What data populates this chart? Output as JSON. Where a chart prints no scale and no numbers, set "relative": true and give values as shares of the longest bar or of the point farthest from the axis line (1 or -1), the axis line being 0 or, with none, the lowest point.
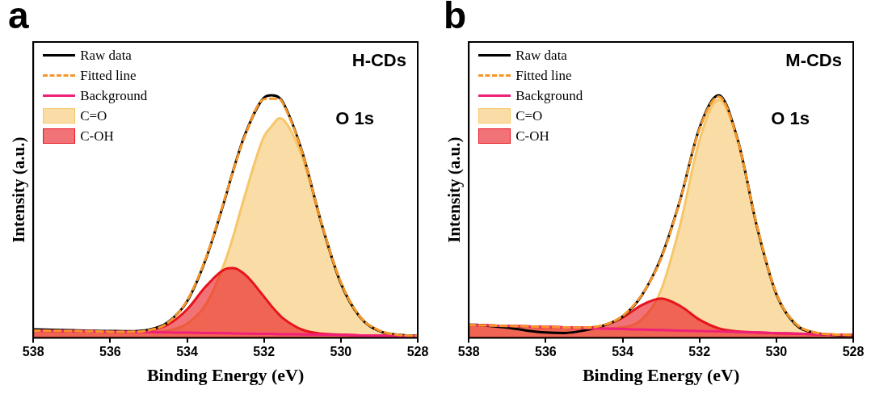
{
  "chart_data": [
    {
      "type": "line",
      "title": "a",
      "xlabel": "Binding Energy (eV)",
      "ylabel": "Intensity (a.u.)",
      "relative": true,
      "legend": "top left",
      "annotations": [
        "H-CDs",
        "O 1s"
      ],
      "xlim": [
        538,
        528
      ],
      "xticks": [
        538,
        536,
        534,
        532,
        530,
        528
      ],
      "x": [
        538,
        537.5,
        537,
        536.5,
        536,
        535.5,
        535,
        534.5,
        534,
        533.5,
        533,
        532.8,
        532.5,
        532,
        531.8,
        531.6,
        531.5,
        531,
        530.5,
        530,
        529.5,
        529,
        528.5,
        528
      ],
      "series": [
        {
          "name": "Raw data",
          "type": "line",
          "color": "#000000",
          "values": [
            0.035,
            0.033,
            0.031,
            0.029,
            0.028,
            0.027,
            0.033,
            0.064,
            0.15,
            0.33,
            0.58,
            0.69,
            0.835,
            0.99,
            1.0,
            0.99,
            0.97,
            0.765,
            0.47,
            0.225,
            0.085,
            0.028,
            0.012,
            0.008
          ]
        },
        {
          "name": "Fitted line",
          "type": "line",
          "line_style": "dashed",
          "color": "#f5962a",
          "values": [
            0.03,
            0.029,
            0.028,
            0.027,
            0.025,
            0.025,
            0.031,
            0.062,
            0.154,
            0.334,
            0.584,
            0.688,
            0.83,
            0.984,
            0.986,
            0.985,
            0.965,
            0.762,
            0.472,
            0.229,
            0.087,
            0.03,
            0.012,
            0.008
          ]
        },
        {
          "name": "Background",
          "type": "line",
          "color": "#f0207a",
          "values": [
            0.03,
            0.029,
            0.028,
            0.027,
            0.025,
            0.024,
            0.023,
            0.022,
            0.021,
            0.02,
            0.019,
            0.018,
            0.017,
            0.016,
            0.016,
            0.015,
            0.015,
            0.014,
            0.013,
            0.012,
            0.01,
            0.009,
            0.008,
            0.007
          ]
        },
        {
          "name": "C=O",
          "type": "area",
          "color": "#f6c66a",
          "values": [
            0.03,
            0.029,
            0.028,
            0.027,
            0.025,
            0.024,
            0.024,
            0.03,
            0.058,
            0.14,
            0.319,
            0.418,
            0.585,
            0.83,
            0.872,
            0.905,
            0.9,
            0.743,
            0.468,
            0.228,
            0.087,
            0.03,
            0.012,
            0.008
          ]
        },
        {
          "name": "C-OH",
          "type": "area",
          "color": "#e8141c",
          "values": [
            0.03,
            0.029,
            0.028,
            0.027,
            0.025,
            0.025,
            0.03,
            0.054,
            0.117,
            0.214,
            0.284,
            0.288,
            0.262,
            0.17,
            0.13,
            0.095,
            0.08,
            0.033,
            0.017,
            0.013,
            0.01,
            0.009,
            0.008,
            0.007
          ]
        }
      ]
    },
    {
      "type": "line",
      "title": "b",
      "xlabel": "Binding Energy (eV)",
      "ylabel": "Intensity (a.u.)",
      "relative": true,
      "legend": "top left",
      "annotations": [
        "M-CDs",
        "O 1s"
      ],
      "xlim": [
        538,
        528
      ],
      "xticks": [
        538,
        536,
        534,
        532,
        530,
        528
      ],
      "x": [
        538,
        537.5,
        537,
        536.5,
        536,
        535.5,
        535,
        534.5,
        534,
        533.5,
        533,
        532.5,
        532,
        531.5,
        531,
        530.5,
        530,
        529.5,
        529,
        528.5,
        528
      ],
      "series": [
        {
          "name": "Raw data",
          "type": "line",
          "color": "#000000",
          "values": [
            0.055,
            0.05,
            0.042,
            0.03,
            0.022,
            0.02,
            0.03,
            0.05,
            0.088,
            0.175,
            0.33,
            0.57,
            0.865,
            1.0,
            0.815,
            0.455,
            0.18,
            0.055,
            0.02,
            0.012,
            0.01
          ]
        },
        {
          "name": "Fitted line",
          "type": "line",
          "line_style": "dashed",
          "color": "#f5962a",
          "values": [
            0.053,
            0.051,
            0.049,
            0.047,
            0.045,
            0.043,
            0.042,
            0.052,
            0.09,
            0.177,
            0.326,
            0.568,
            0.861,
            0.994,
            0.812,
            0.459,
            0.183,
            0.059,
            0.022,
            0.014,
            0.011
          ]
        },
        {
          "name": "Background",
          "type": "line",
          "color": "#f0207a",
          "values": [
            0.053,
            0.051,
            0.049,
            0.047,
            0.045,
            0.043,
            0.04,
            0.038,
            0.036,
            0.034,
            0.032,
            0.03,
            0.028,
            0.026,
            0.024,
            0.022,
            0.019,
            0.017,
            0.015,
            0.013,
            0.011
          ]
        },
        {
          "name": "C=O",
          "type": "area",
          "color": "#f6c66a",
          "values": [
            0.053,
            0.051,
            0.049,
            0.047,
            0.045,
            0.043,
            0.04,
            0.039,
            0.043,
            0.076,
            0.196,
            0.467,
            0.814,
            0.981,
            0.81,
            0.459,
            0.183,
            0.059,
            0.022,
            0.014,
            0.011
          ]
        },
        {
          "name": "C-OH",
          "type": "area",
          "color": "#e8141c",
          "values": [
            0.053,
            0.051,
            0.049,
            0.047,
            0.045,
            0.043,
            0.042,
            0.051,
            0.083,
            0.135,
            0.162,
            0.131,
            0.075,
            0.039,
            0.026,
            0.022,
            0.019,
            0.017,
            0.015,
            0.013,
            0.011
          ]
        }
      ]
    }
  ]
}
